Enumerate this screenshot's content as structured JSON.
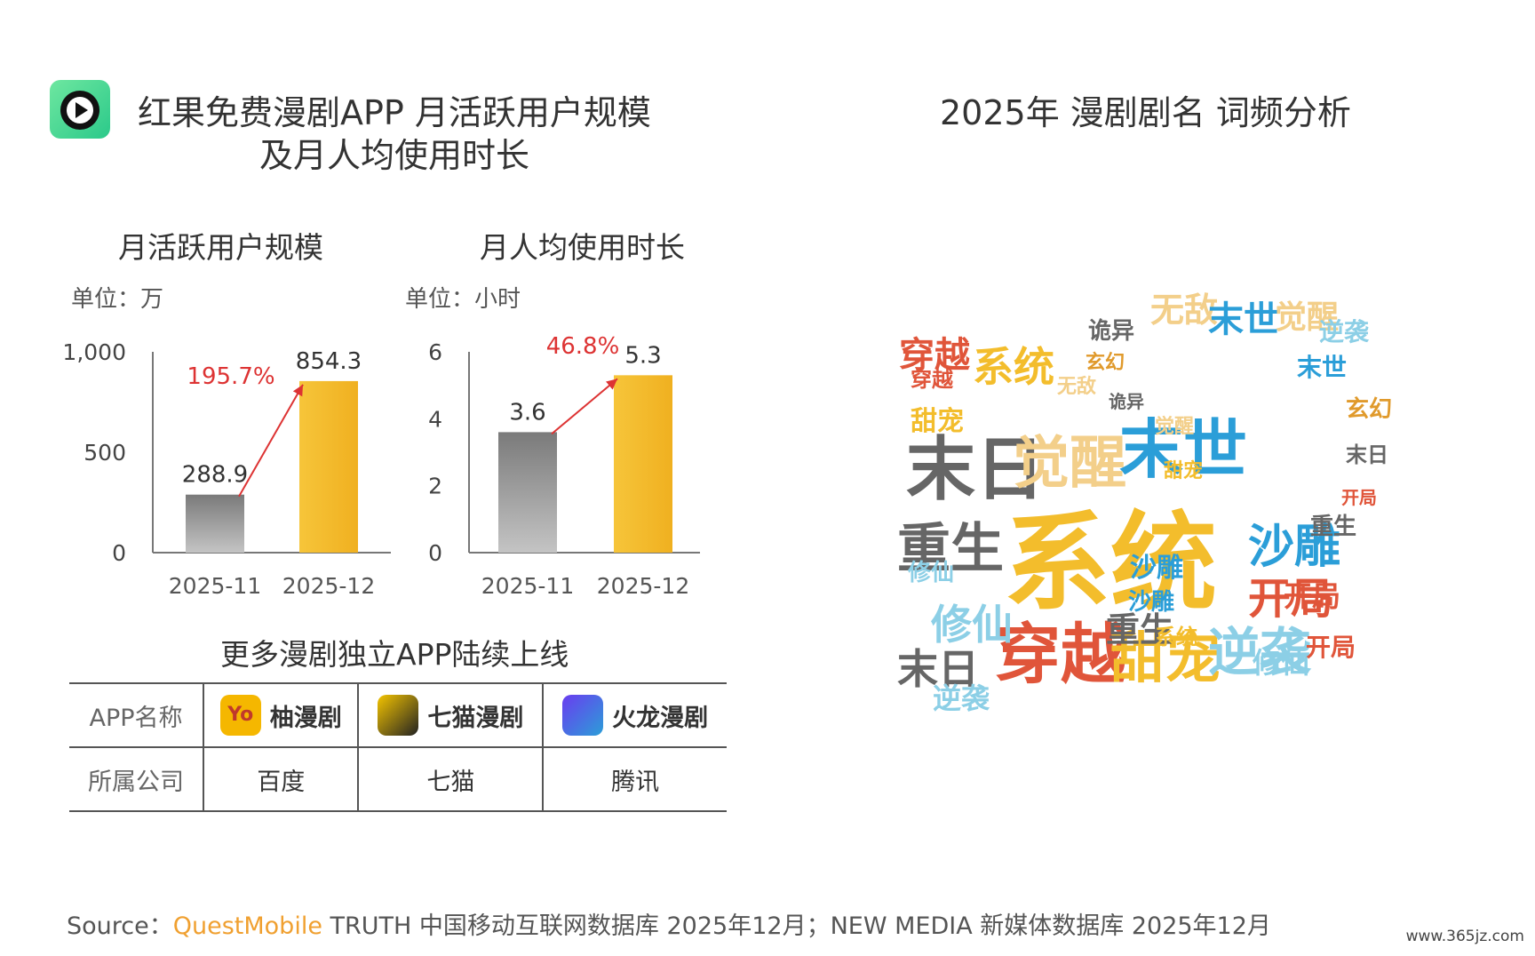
{
  "left_title_line1": "红果免费漫剧APP 月活跃用户规模",
  "left_title_line2": "及月人均使用时长",
  "right_title": "2025年 漫剧剧名 词频分析",
  "chart_data": [
    {
      "type": "bar",
      "title": "月活跃用户规模",
      "unit": "单位：万",
      "categories": [
        "2025-11",
        "2025-12"
      ],
      "values": [
        288.9,
        854.3
      ],
      "value_labels": [
        "288.9",
        "854.3"
      ],
      "ylim": [
        0,
        1000
      ],
      "yticks": [
        0,
        500,
        1000
      ],
      "ytick_labels": [
        "0",
        "500",
        "1,000"
      ],
      "growth_label": "195.7%",
      "bar_colors": [
        "#8a8a8a",
        "#f3bd2c"
      ]
    },
    {
      "type": "bar",
      "title": "月人均使用时长",
      "unit": "单位：小时",
      "categories": [
        "2025-11",
        "2025-12"
      ],
      "values": [
        3.6,
        5.3
      ],
      "value_labels": [
        "3.6",
        "5.3"
      ],
      "ylim": [
        0,
        6
      ],
      "yticks": [
        0,
        2,
        4,
        6
      ],
      "ytick_labels": [
        "0",
        "2",
        "4",
        "6"
      ],
      "growth_label": "46.8%",
      "bar_colors": [
        "#8a8a8a",
        "#f3bd2c"
      ]
    }
  ],
  "app_section_title": "更多漫剧独立APP陆续上线",
  "app_table": {
    "row1_head": "APP名称",
    "row2_head": "所属公司",
    "apps": [
      {
        "name": "柚漫剧",
        "company": "百度",
        "icon": "yoyo-app-icon",
        "color": "#f5b700"
      },
      {
        "name": "七猫漫剧",
        "company": "七猫",
        "icon": "qimao-app-icon",
        "color": "#f4c400"
      },
      {
        "name": "火龙漫剧",
        "company": "腾讯",
        "icon": "huolong-app-icon",
        "color": "#6a3cf0"
      }
    ]
  },
  "wordcloud": [
    {
      "t": "系统",
      "c": "#f3bd2c"
    },
    {
      "t": "末日",
      "c": "#666666"
    },
    {
      "t": "末世",
      "c": "#2b9ed8"
    },
    {
      "t": "觉醒",
      "c": "#f3cf8a"
    },
    {
      "t": "穿越",
      "c": "#e0553a"
    },
    {
      "t": "甜宠",
      "c": "#f3bd2c"
    },
    {
      "t": "逆袭",
      "c": "#8ccfe6"
    },
    {
      "t": "沙雕",
      "c": "#2b9ed8"
    },
    {
      "t": "重生",
      "c": "#666666"
    },
    {
      "t": "开局",
      "c": "#e0553a"
    },
    {
      "t": "修仙",
      "c": "#8ccfe6"
    },
    {
      "t": "末日",
      "c": "#666666"
    },
    {
      "t": "穿越",
      "c": "#e0553a"
    },
    {
      "t": "系统",
      "c": "#f3bd2c"
    },
    {
      "t": "重生",
      "c": "#666666"
    },
    {
      "t": "无敌",
      "c": "#f3cf8a"
    },
    {
      "t": "末世",
      "c": "#2b9ed8"
    },
    {
      "t": "觉醒",
      "c": "#f3cf8a"
    },
    {
      "t": "诡异",
      "c": "#666666"
    },
    {
      "t": "玄幻",
      "c": "#e09a2c"
    },
    {
      "t": "甜宠",
      "c": "#f3bd2c"
    },
    {
      "t": "开局",
      "c": "#e0553a"
    },
    {
      "t": "沙雕",
      "c": "#2b9ed8"
    },
    {
      "t": "修仙",
      "c": "#8ccfe6"
    },
    {
      "t": "开局",
      "c": "#e0553a"
    },
    {
      "t": "逆袭",
      "c": "#8ccfe6"
    },
    {
      "t": "沙雕",
      "c": "#2b9ed8"
    },
    {
      "t": "末世",
      "c": "#2b9ed8"
    },
    {
      "t": "末日",
      "c": "#666666"
    },
    {
      "t": "重生",
      "c": "#666666"
    },
    {
      "t": "无敌",
      "c": "#f3cf8a"
    },
    {
      "t": "玄幻",
      "c": "#e09a2c"
    },
    {
      "t": "甜宠",
      "c": "#f3bd2c"
    },
    {
      "t": "逆袭",
      "c": "#8ccfe6"
    },
    {
      "t": "觉醒",
      "c": "#f3cf8a"
    },
    {
      "t": "系统",
      "c": "#f3bd2c"
    },
    {
      "t": "诡异",
      "c": "#666666"
    },
    {
      "t": "穿越",
      "c": "#e0553a"
    },
    {
      "t": "开局",
      "c": "#e0553a"
    },
    {
      "t": "修仙",
      "c": "#8ccfe6"
    }
  ],
  "source_prefix": "Source：",
  "source_brand": "QuestMobile",
  "source_rest": " TRUTH 中国移动互联网数据库 2025年12月；NEW MEDIA 新媒体数据库 2025年12月",
  "site_watermark": "www.365jz.com"
}
